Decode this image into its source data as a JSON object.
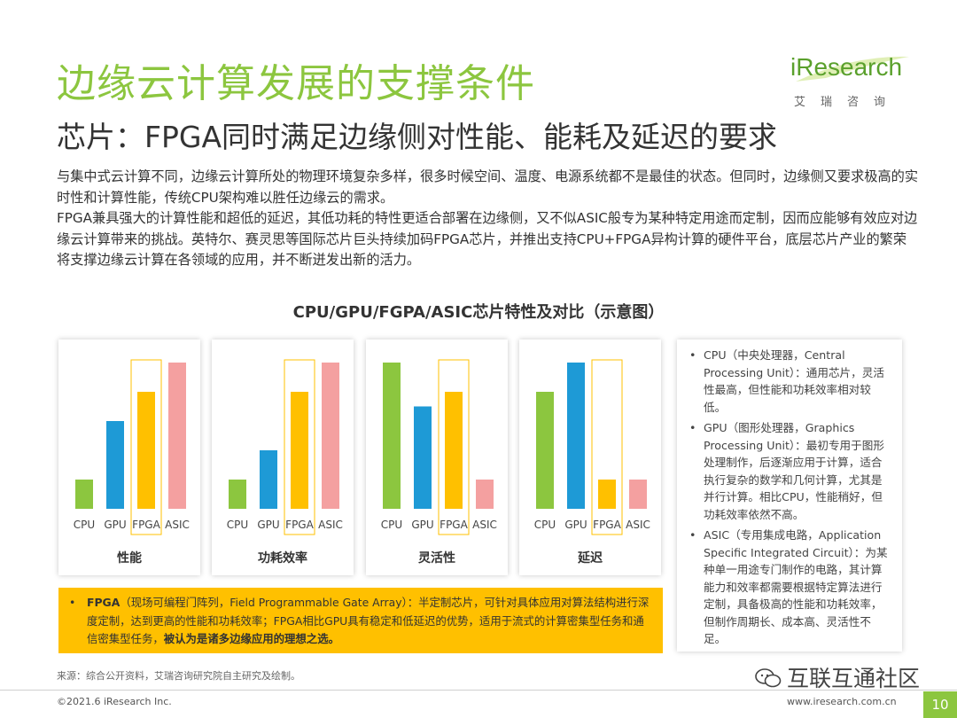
{
  "header": {
    "title": "边缘云计算发展的支撑条件",
    "subtitle": "芯片：FPGA同时满足边缘侧对性能、能耗及延迟的要求",
    "logo_text": "iResearch",
    "logo_sub": "艾瑞咨询"
  },
  "intro": {
    "p1": "与集中式云计算不同，边缘云计算所处的物理环境复杂多样，很多时候空间、温度、电源系统都不是最佳的状态。但同时，边缘侧又要求极高的实时性和计算性能，传统CPU架构难以胜任边缘云的需求。",
    "p2": "FPGA兼具强大的计算性能和超低的延迟，其低功耗的特性更适合部署在边缘侧，又不似ASIC般专为某种特定用途而定制，因而应能够有效应对边缘云计算带来的挑战。英特尔、赛灵思等国际芯片巨头持续加码FPGA芯片，并推出支持CPU+FPGA异构计算的硬件平台，底层芯片产业的繁荣将支撑边缘云计算在各领域的应用，并不断迸发出新的活力。"
  },
  "chart_title": "CPU/GPU/FGPA/ASIC芯片特性及对比（示意图）",
  "chart_data": {
    "type": "bar",
    "categories": [
      "CPU",
      "GPU",
      "FPGA",
      "ASIC"
    ],
    "highlight_category": "FPGA",
    "colors": [
      "#8cc63f",
      "#1e9ad6",
      "#ffc000",
      "#f4a0a0"
    ],
    "charts": [
      {
        "xlabel": "性能",
        "values": [
          1,
          3,
          4,
          5
        ]
      },
      {
        "xlabel": "功耗效率",
        "values": [
          1,
          2,
          4,
          5
        ]
      },
      {
        "xlabel": "灵活性",
        "values": [
          5,
          3.5,
          4,
          1
        ]
      },
      {
        "xlabel": "延迟",
        "values": [
          4,
          5,
          1,
          1
        ]
      }
    ]
  },
  "sidebox": {
    "bullet": "•",
    "items": [
      "CPU（中央处理器，Central Processing Unit）：通用芯片，灵活性最高，但性能和功耗效率相对较低。",
      "GPU（图形处理器，Graphics Processing Unit）：最初专用于图形处理制作，后逐渐应用于计算，适合执行复杂的数学和几何计算，尤其是并行计算。相比CPU，性能稍好，但功耗效率依然不高。",
      "ASIC（专用集成电路，Application Specific Integrated Circuit）：为某种单一用途专门制作的电路，其计算能力和效率都需要根据特定算法进行定制，具备极高的性能和功耗效率，但制作周期长、成本高、灵活性不足。"
    ]
  },
  "note": {
    "bullet": "•",
    "term": "FPGA",
    "body": "（现场可编程门阵列，Field Programmable Gate Array）：半定制芯片，可针对具体应用对算法结构进行深度定制，达到更高的性能和功耗效率；FPGA相比GPU具有稳定和低延迟的优势，适用于流式的计算密集型任务和通信密集型任务，",
    "conclusion": "被认为是诸多边缘应用的理想之选。"
  },
  "footer": {
    "source": "来源：综合公开资料，艾瑞咨询研究院自主研究及绘制。",
    "copyright": "©2021.6 iResearch Inc.",
    "website": "www.iresearch.com.cn",
    "page": "10",
    "watermark": "互联互通社区"
  }
}
